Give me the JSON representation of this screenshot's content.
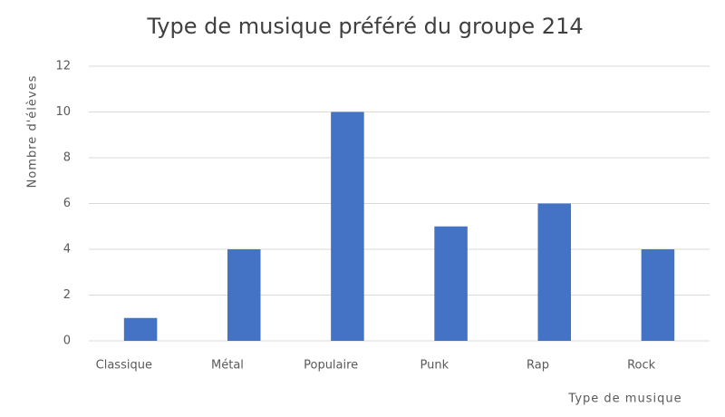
{
  "chart_data": {
    "type": "bar",
    "title": "Type de musique préféré du groupe 214",
    "x_label": "Type de musique",
    "y_label": "Nombre d'élèves",
    "categories": [
      "Classique",
      "Métal",
      "Populaire",
      "Punk",
      "Rap",
      "Rock"
    ],
    "values": [
      1,
      4,
      10,
      5,
      6,
      4
    ],
    "color": "#4472c4",
    "ylim": [
      0,
      12
    ],
    "yticks": [
      0,
      2,
      4,
      6,
      8,
      10,
      12
    ],
    "grid": true
  }
}
